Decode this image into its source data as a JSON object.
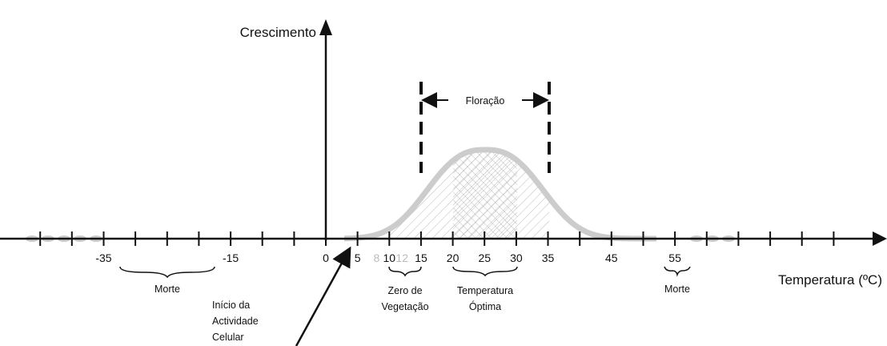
{
  "y_axis": {
    "label": "Crescimento"
  },
  "x_axis": {
    "label": "Temperatura (ºC)",
    "ticks": [
      -35,
      -15,
      0,
      5,
      8,
      10,
      12,
      15,
      20,
      25,
      30,
      35,
      45,
      55
    ]
  },
  "annotations": {
    "flowering": "Floração",
    "death_left": "Morte",
    "zero_vegetation": [
      "Zero de",
      "Vegetação"
    ],
    "optimum": [
      "Temperatura",
      "Óptima"
    ],
    "death_right": "Morte",
    "cell_activity": [
      "Início da",
      "Actividade",
      "Celular"
    ]
  }
}
